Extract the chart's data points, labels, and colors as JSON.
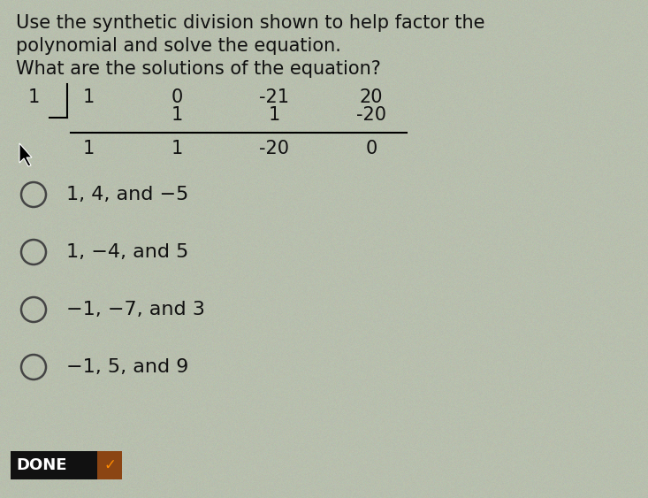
{
  "title_lines": [
    "Use the synthetic division shown to help factor the",
    "polynomial and solve the equation.",
    "What are the solutions of the equation?"
  ],
  "bg_color": "#b8bfae",
  "text_color": "#111111",
  "divisor": "1",
  "top_row": [
    "1",
    "0",
    "-21",
    "20"
  ],
  "middle_row": [
    "",
    "1",
    "1",
    "-20"
  ],
  "bottom_row": [
    "1",
    "1",
    "-20",
    "0"
  ],
  "options": [
    "1, 4, and −5",
    "1, −4, and 5",
    "−1, −7, and 3",
    "−1, 5, and 9"
  ],
  "done_bg": "#111111",
  "done_text": "DONE",
  "done_arrow_color": "#cc4400",
  "title_fontsize": 15,
  "synth_fontsize": 15,
  "option_fontsize": 16
}
